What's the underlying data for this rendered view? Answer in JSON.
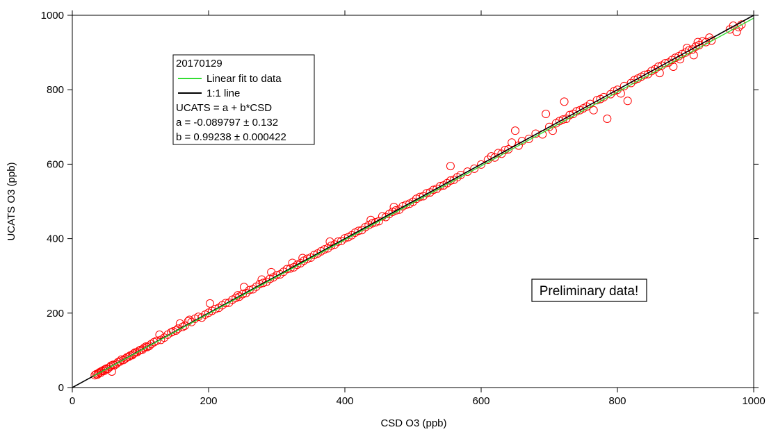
{
  "chart_data": {
    "type": "scatter",
    "title": "",
    "xlabel": "CSD O3 (ppb)",
    "ylabel": "UCATS O3 (ppb)",
    "xlim": [
      0,
      1000
    ],
    "ylim": [
      0,
      1000
    ],
    "x_ticks": [
      "0",
      "200",
      "400",
      "600",
      "800",
      "1000"
    ],
    "y_ticks": [
      "0",
      "200",
      "400",
      "600",
      "800",
      "1000"
    ],
    "grid": false,
    "legend_position": "top-left",
    "legend": {
      "date": "20170129",
      "entries": [
        {
          "label": "Linear fit to data",
          "color": "#33dd33"
        },
        {
          "label": "1:1 line",
          "color": "#000000"
        }
      ],
      "equation": "UCATS = a + b*CSD",
      "coef_a": "a = -0.089797 ± 0.132",
      "coef_b": "b = 0.99238 ± 0.000422"
    },
    "fit": {
      "a": -0.089797,
      "b": 0.99238,
      "x_range": [
        30,
        1000
      ]
    },
    "one_to_one": {
      "x_range": [
        0,
        1000
      ]
    },
    "annotation": "Preliminary data!",
    "marker_color": "#ff0000",
    "series": [
      {
        "points": [
          [
            33,
            33
          ],
          [
            35,
            36
          ],
          [
            37,
            35
          ],
          [
            38,
            38
          ],
          [
            40,
            41
          ],
          [
            42,
            40
          ],
          [
            43,
            44
          ],
          [
            45,
            46
          ],
          [
            47,
            45
          ],
          [
            48,
            49
          ],
          [
            50,
            51
          ],
          [
            52,
            50
          ],
          [
            55,
            55
          ],
          [
            57,
            59
          ],
          [
            58,
            43
          ],
          [
            60,
            61
          ],
          [
            62,
            60
          ],
          [
            65,
            64
          ],
          [
            67,
            68
          ],
          [
            70,
            70
          ],
          [
            72,
            75
          ],
          [
            75,
            74
          ],
          [
            78,
            78
          ],
          [
            80,
            81
          ],
          [
            83,
            83
          ],
          [
            85,
            86
          ],
          [
            88,
            87
          ],
          [
            90,
            91
          ],
          [
            92,
            94
          ],
          [
            95,
            95
          ],
          [
            98,
            99
          ],
          [
            100,
            101
          ],
          [
            103,
            102
          ],
          [
            105,
            106
          ],
          [
            108,
            110
          ],
          [
            110,
            109
          ],
          [
            113,
            112
          ],
          [
            116,
            117
          ],
          [
            120,
            122
          ],
          [
            124,
            126
          ],
          [
            128,
            142
          ],
          [
            130,
            128
          ],
          [
            135,
            134
          ],
          [
            140,
            142
          ],
          [
            145,
            148
          ],
          [
            148,
            151
          ],
          [
            152,
            153
          ],
          [
            155,
            158
          ],
          [
            158,
            172
          ],
          [
            162,
            163
          ],
          [
            165,
            166
          ],
          [
            170,
            178
          ],
          [
            172,
            182
          ],
          [
            175,
            176
          ],
          [
            180,
            185
          ],
          [
            185,
            190
          ],
          [
            190,
            188
          ],
          [
            195,
            196
          ],
          [
            200,
            201
          ],
          [
            202,
            226
          ],
          [
            205,
            206
          ],
          [
            210,
            211
          ],
          [
            215,
            214
          ],
          [
            220,
            221
          ],
          [
            225,
            227
          ],
          [
            230,
            228
          ],
          [
            235,
            236
          ],
          [
            240,
            241
          ],
          [
            243,
            248
          ],
          [
            245,
            244
          ],
          [
            250,
            251
          ],
          [
            252,
            270
          ],
          [
            255,
            254
          ],
          [
            260,
            262
          ],
          [
            265,
            264
          ],
          [
            270,
            271
          ],
          [
            275,
            278
          ],
          [
            278,
            290
          ],
          [
            280,
            281
          ],
          [
            285,
            284
          ],
          [
            290,
            292
          ],
          [
            292,
            310
          ],
          [
            295,
            296
          ],
          [
            300,
            302
          ],
          [
            305,
            304
          ],
          [
            310,
            311
          ],
          [
            315,
            318
          ],
          [
            320,
            320
          ],
          [
            323,
            335
          ],
          [
            325,
            323
          ],
          [
            330,
            330
          ],
          [
            335,
            334
          ],
          [
            338,
            348
          ],
          [
            340,
            341
          ],
          [
            345,
            346
          ],
          [
            350,
            349
          ],
          [
            355,
            356
          ],
          [
            360,
            360
          ],
          [
            365,
            366
          ],
          [
            370,
            371
          ],
          [
            375,
            374
          ],
          [
            378,
            392
          ],
          [
            380,
            381
          ],
          [
            385,
            384
          ],
          [
            390,
            392
          ],
          [
            395,
            394
          ],
          [
            400,
            401
          ],
          [
            405,
            404
          ],
          [
            410,
            409
          ],
          [
            415,
            416
          ],
          [
            420,
            421
          ],
          [
            425,
            423
          ],
          [
            430,
            431
          ],
          [
            435,
            436
          ],
          [
            438,
            450
          ],
          [
            440,
            441
          ],
          [
            445,
            444
          ],
          [
            450,
            447
          ],
          [
            455,
            460
          ],
          [
            460,
            458
          ],
          [
            465,
            466
          ],
          [
            470,
            472
          ],
          [
            472,
            485
          ],
          [
            475,
            476
          ],
          [
            480,
            478
          ],
          [
            485,
            487
          ],
          [
            490,
            491
          ],
          [
            495,
            494
          ],
          [
            500,
            499
          ],
          [
            505,
            507
          ],
          [
            510,
            512
          ],
          [
            515,
            514
          ],
          [
            520,
            522
          ],
          [
            525,
            524
          ],
          [
            530,
            531
          ],
          [
            535,
            534
          ],
          [
            540,
            541
          ],
          [
            545,
            543
          ],
          [
            550,
            549
          ],
          [
            555,
            556
          ],
          [
            555,
            595
          ],
          [
            560,
            558
          ],
          [
            565,
            565
          ],
          [
            570,
            571
          ],
          [
            580,
            580
          ],
          [
            590,
            588
          ],
          [
            600,
            599
          ],
          [
            610,
            612
          ],
          [
            615,
            621
          ],
          [
            620,
            618
          ],
          [
            625,
            630
          ],
          [
            630,
            628
          ],
          [
            635,
            638
          ],
          [
            640,
            640
          ],
          [
            645,
            658
          ],
          [
            650,
            690
          ],
          [
            655,
            650
          ],
          [
            660,
            662
          ],
          [
            670,
            668
          ],
          [
            680,
            682
          ],
          [
            690,
            680
          ],
          [
            695,
            735
          ],
          [
            700,
            700
          ],
          [
            705,
            690
          ],
          [
            710,
            710
          ],
          [
            715,
            716
          ],
          [
            720,
            720
          ],
          [
            722,
            768
          ],
          [
            725,
            722
          ],
          [
            730,
            732
          ],
          [
            735,
            735
          ],
          [
            740,
            742
          ],
          [
            745,
            745
          ],
          [
            750,
            750
          ],
          [
            755,
            755
          ],
          [
            760,
            762
          ],
          [
            765,
            745
          ],
          [
            770,
            772
          ],
          [
            775,
            775
          ],
          [
            780,
            780
          ],
          [
            785,
            722
          ],
          [
            790,
            788
          ],
          [
            795,
            796
          ],
          [
            800,
            800
          ],
          [
            805,
            790
          ],
          [
            810,
            810
          ],
          [
            815,
            770
          ],
          [
            820,
            818
          ],
          [
            825,
            826
          ],
          [
            830,
            830
          ],
          [
            835,
            835
          ],
          [
            840,
            840
          ],
          [
            845,
            842
          ],
          [
            850,
            850
          ],
          [
            855,
            855
          ],
          [
            860,
            862
          ],
          [
            862,
            845
          ],
          [
            865,
            865
          ],
          [
            870,
            871
          ],
          [
            875,
            873
          ],
          [
            880,
            880
          ],
          [
            882,
            862
          ],
          [
            885,
            886
          ],
          [
            890,
            890
          ],
          [
            892,
            882
          ],
          [
            895,
            896
          ],
          [
            900,
            900
          ],
          [
            902,
            912
          ],
          [
            905,
            906
          ],
          [
            910,
            908
          ],
          [
            912,
            893
          ],
          [
            915,
            916
          ],
          [
            918,
            928
          ],
          [
            920,
            920
          ],
          [
            925,
            930
          ],
          [
            930,
            928
          ],
          [
            935,
            940
          ],
          [
            938,
            932
          ],
          [
            965,
            962
          ],
          [
            970,
            972
          ],
          [
            975,
            955
          ],
          [
            978,
            968
          ],
          [
            982,
            975
          ]
        ]
      }
    ]
  }
}
